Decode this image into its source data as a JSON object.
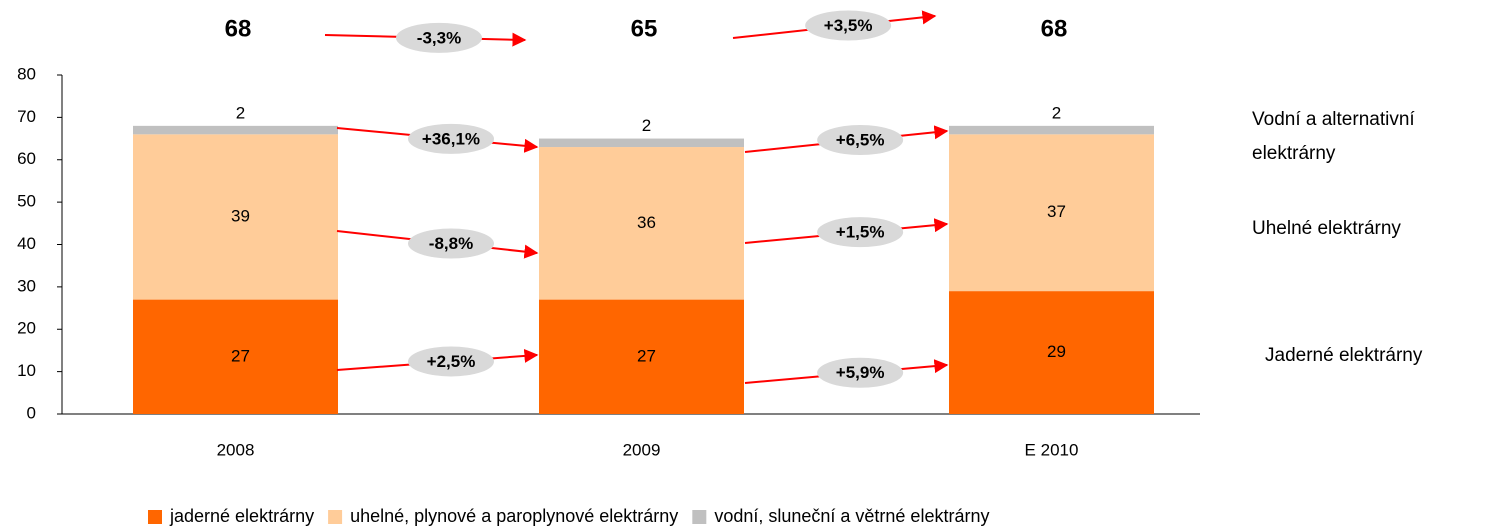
{
  "chart_data": {
    "type": "stacked_bar",
    "categories": [
      "2008",
      "2009",
      "E 2010"
    ],
    "totals": [
      68,
      65,
      68
    ],
    "total_changes": [
      "-3,3%",
      "+3,5%"
    ],
    "series": [
      {
        "name": "jaderné elektrárny",
        "color": "#ff6600",
        "values": [
          27,
          27,
          29
        ],
        "changes": [
          "+2,5%",
          "+5,9%"
        ],
        "side_label": [
          "Jaderné elektrárny"
        ]
      },
      {
        "name": "uhelné, plynové a paroplynové elektrárny",
        "color": "#ffcc99",
        "values": [
          39,
          36,
          37
        ],
        "changes": [
          "-8,8%",
          "+1,5%"
        ],
        "side_label": [
          "Uhelné elektrárny"
        ]
      },
      {
        "name": "vodní, sluneční a větrné elektrárny",
        "color": "#c0c0c0",
        "values": [
          2,
          2,
          2
        ],
        "changes": [
          "+36,1%",
          "+6,5%"
        ],
        "side_label": [
          "Vodní a alternativní",
          "elektrárny"
        ]
      }
    ],
    "ylim": [
      0,
      80
    ],
    "yticks": [
      0,
      10,
      20,
      30,
      40,
      50,
      60,
      70,
      80
    ],
    "grid": false
  }
}
